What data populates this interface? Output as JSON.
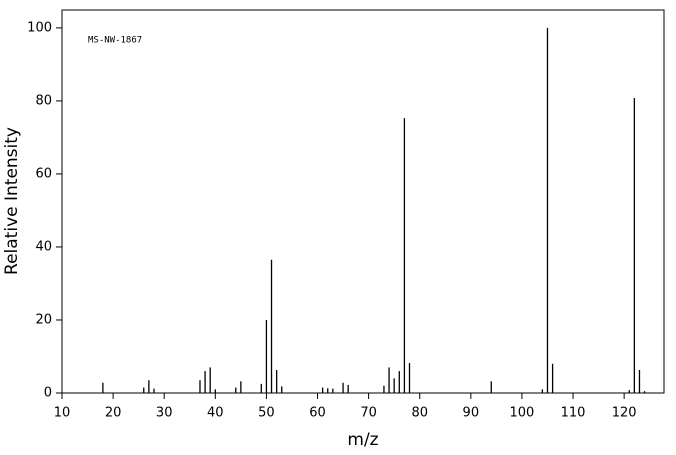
{
  "chart_data": {
    "type": "stem",
    "annotation": "MS-NW-1867",
    "x_label": "m/z",
    "y_label": "Relative Intensity",
    "x": [
      18,
      26,
      27,
      28,
      37,
      38,
      39,
      40,
      44,
      45,
      49,
      50,
      51,
      52,
      53,
      61,
      62,
      63,
      65,
      66,
      73,
      74,
      75,
      76,
      77,
      78,
      94,
      104,
      105,
      106,
      121,
      122,
      123,
      124
    ],
    "values": [
      2.8,
      1.5,
      3.5,
      1.2,
      3.5,
      6,
      7,
      1,
      1.5,
      3.2,
      2.5,
      20,
      36.5,
      6.3,
      1.8,
      1.5,
      1.3,
      1.2,
      2.8,
      2.2,
      2,
      7,
      4,
      6,
      75.3,
      8.2,
      3.2,
      1,
      100,
      8,
      0.8,
      80.8,
      6.3,
      0.5
    ],
    "color": "#000000",
    "xlim": [
      10,
      127.8
    ],
    "ylim": [
      0,
      104.9
    ],
    "xticks": [
      10,
      20,
      30,
      40,
      50,
      60,
      70,
      80,
      90,
      100,
      110,
      120
    ],
    "yticks": [
      0,
      20,
      40,
      60,
      80,
      100
    ]
  }
}
